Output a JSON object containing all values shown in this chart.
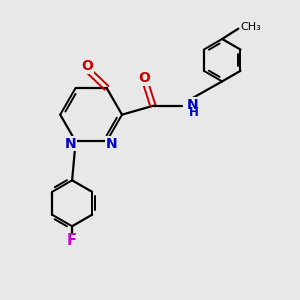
{
  "background_color": "#e8e8e8",
  "bond_color": "#000000",
  "N_color": "#0000cc",
  "O_color": "#cc0000",
  "F_color": "#cc00cc",
  "NH_color": "#0000cc",
  "figsize": [
    3.0,
    3.0
  ],
  "dpi": 100,
  "xlim": [
    0,
    10
  ],
  "ylim": [
    0,
    10
  ]
}
